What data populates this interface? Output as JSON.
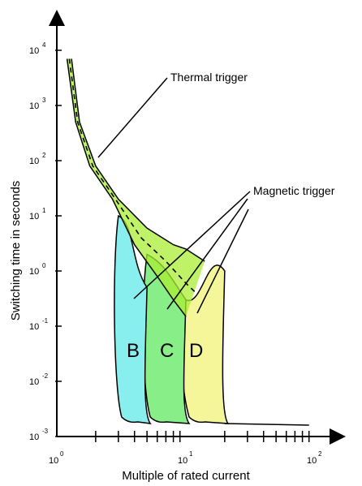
{
  "chart_data": {
    "type": "line",
    "title": "",
    "xlabel": "Multiple of rated current",
    "ylabel": "Switching time in seconds",
    "x_scale": "log",
    "y_scale": "log",
    "xlim": [
      1,
      100
    ],
    "ylim": [
      0.001,
      10000
    ],
    "x_ticks": [
      {
        "base": "10",
        "exp": "0"
      },
      {
        "base": "10",
        "exp": "1"
      },
      {
        "base": "10",
        "exp": "2"
      }
    ],
    "y_ticks": [
      {
        "base": "10",
        "exp": "4"
      },
      {
        "base": "10",
        "exp": "3"
      },
      {
        "base": "10",
        "exp": "2"
      },
      {
        "base": "10",
        "exp": "1"
      },
      {
        "base": "10",
        "exp": "0"
      },
      {
        "base": "10",
        "exp": "-1"
      },
      {
        "base": "10",
        "exp": "-2"
      },
      {
        "base": "10",
        "exp": "-3"
      }
    ],
    "annotations": {
      "thermal": "Thermal trigger",
      "magnetic": "Magnetic trigger"
    },
    "colors": {
      "thermal_band": "#aaee33",
      "zone_B": "#88eeee",
      "zone_C": "#88ee88",
      "zone_D": "#f5f59a"
    },
    "series": [
      {
        "name": "B",
        "x": [
          3,
          3,
          5,
          5
        ],
        "y": [
          10,
          0.001,
          0.001,
          0.5
        ]
      },
      {
        "name": "C",
        "x": [
          5,
          5,
          10,
          10
        ],
        "y": [
          2,
          0.001,
          0.001,
          0.3
        ]
      },
      {
        "name": "D",
        "x": [
          10,
          10,
          20,
          20
        ],
        "y": [
          0.3,
          0.001,
          0.001,
          1
        ]
      }
    ],
    "thermal_band": {
      "upper": [
        [
          1.3,
          7000
        ],
        [
          1.5,
          500
        ],
        [
          2,
          80
        ],
        [
          3,
          20
        ],
        [
          5,
          6
        ],
        [
          8,
          3
        ],
        [
          10,
          2.5
        ],
        [
          14,
          1.5
        ]
      ],
      "lower": [
        [
          1.2,
          7000
        ],
        [
          1.4,
          500
        ],
        [
          1.8,
          80
        ],
        [
          2.7,
          20
        ],
        [
          4,
          3
        ],
        [
          6,
          0.8
        ],
        [
          8,
          0.3
        ],
        [
          10,
          0.15
        ]
      ],
      "mid": [
        [
          1.25,
          7000
        ],
        [
          1.45,
          500
        ],
        [
          1.9,
          80
        ],
        [
          2.85,
          20
        ],
        [
          4.5,
          4
        ],
        [
          7,
          1.5
        ],
        [
          10,
          0.6
        ],
        [
          12,
          0.4
        ]
      ]
    },
    "zone_labels": [
      "B",
      "C",
      "D"
    ],
    "grid": false,
    "legend": "none"
  }
}
